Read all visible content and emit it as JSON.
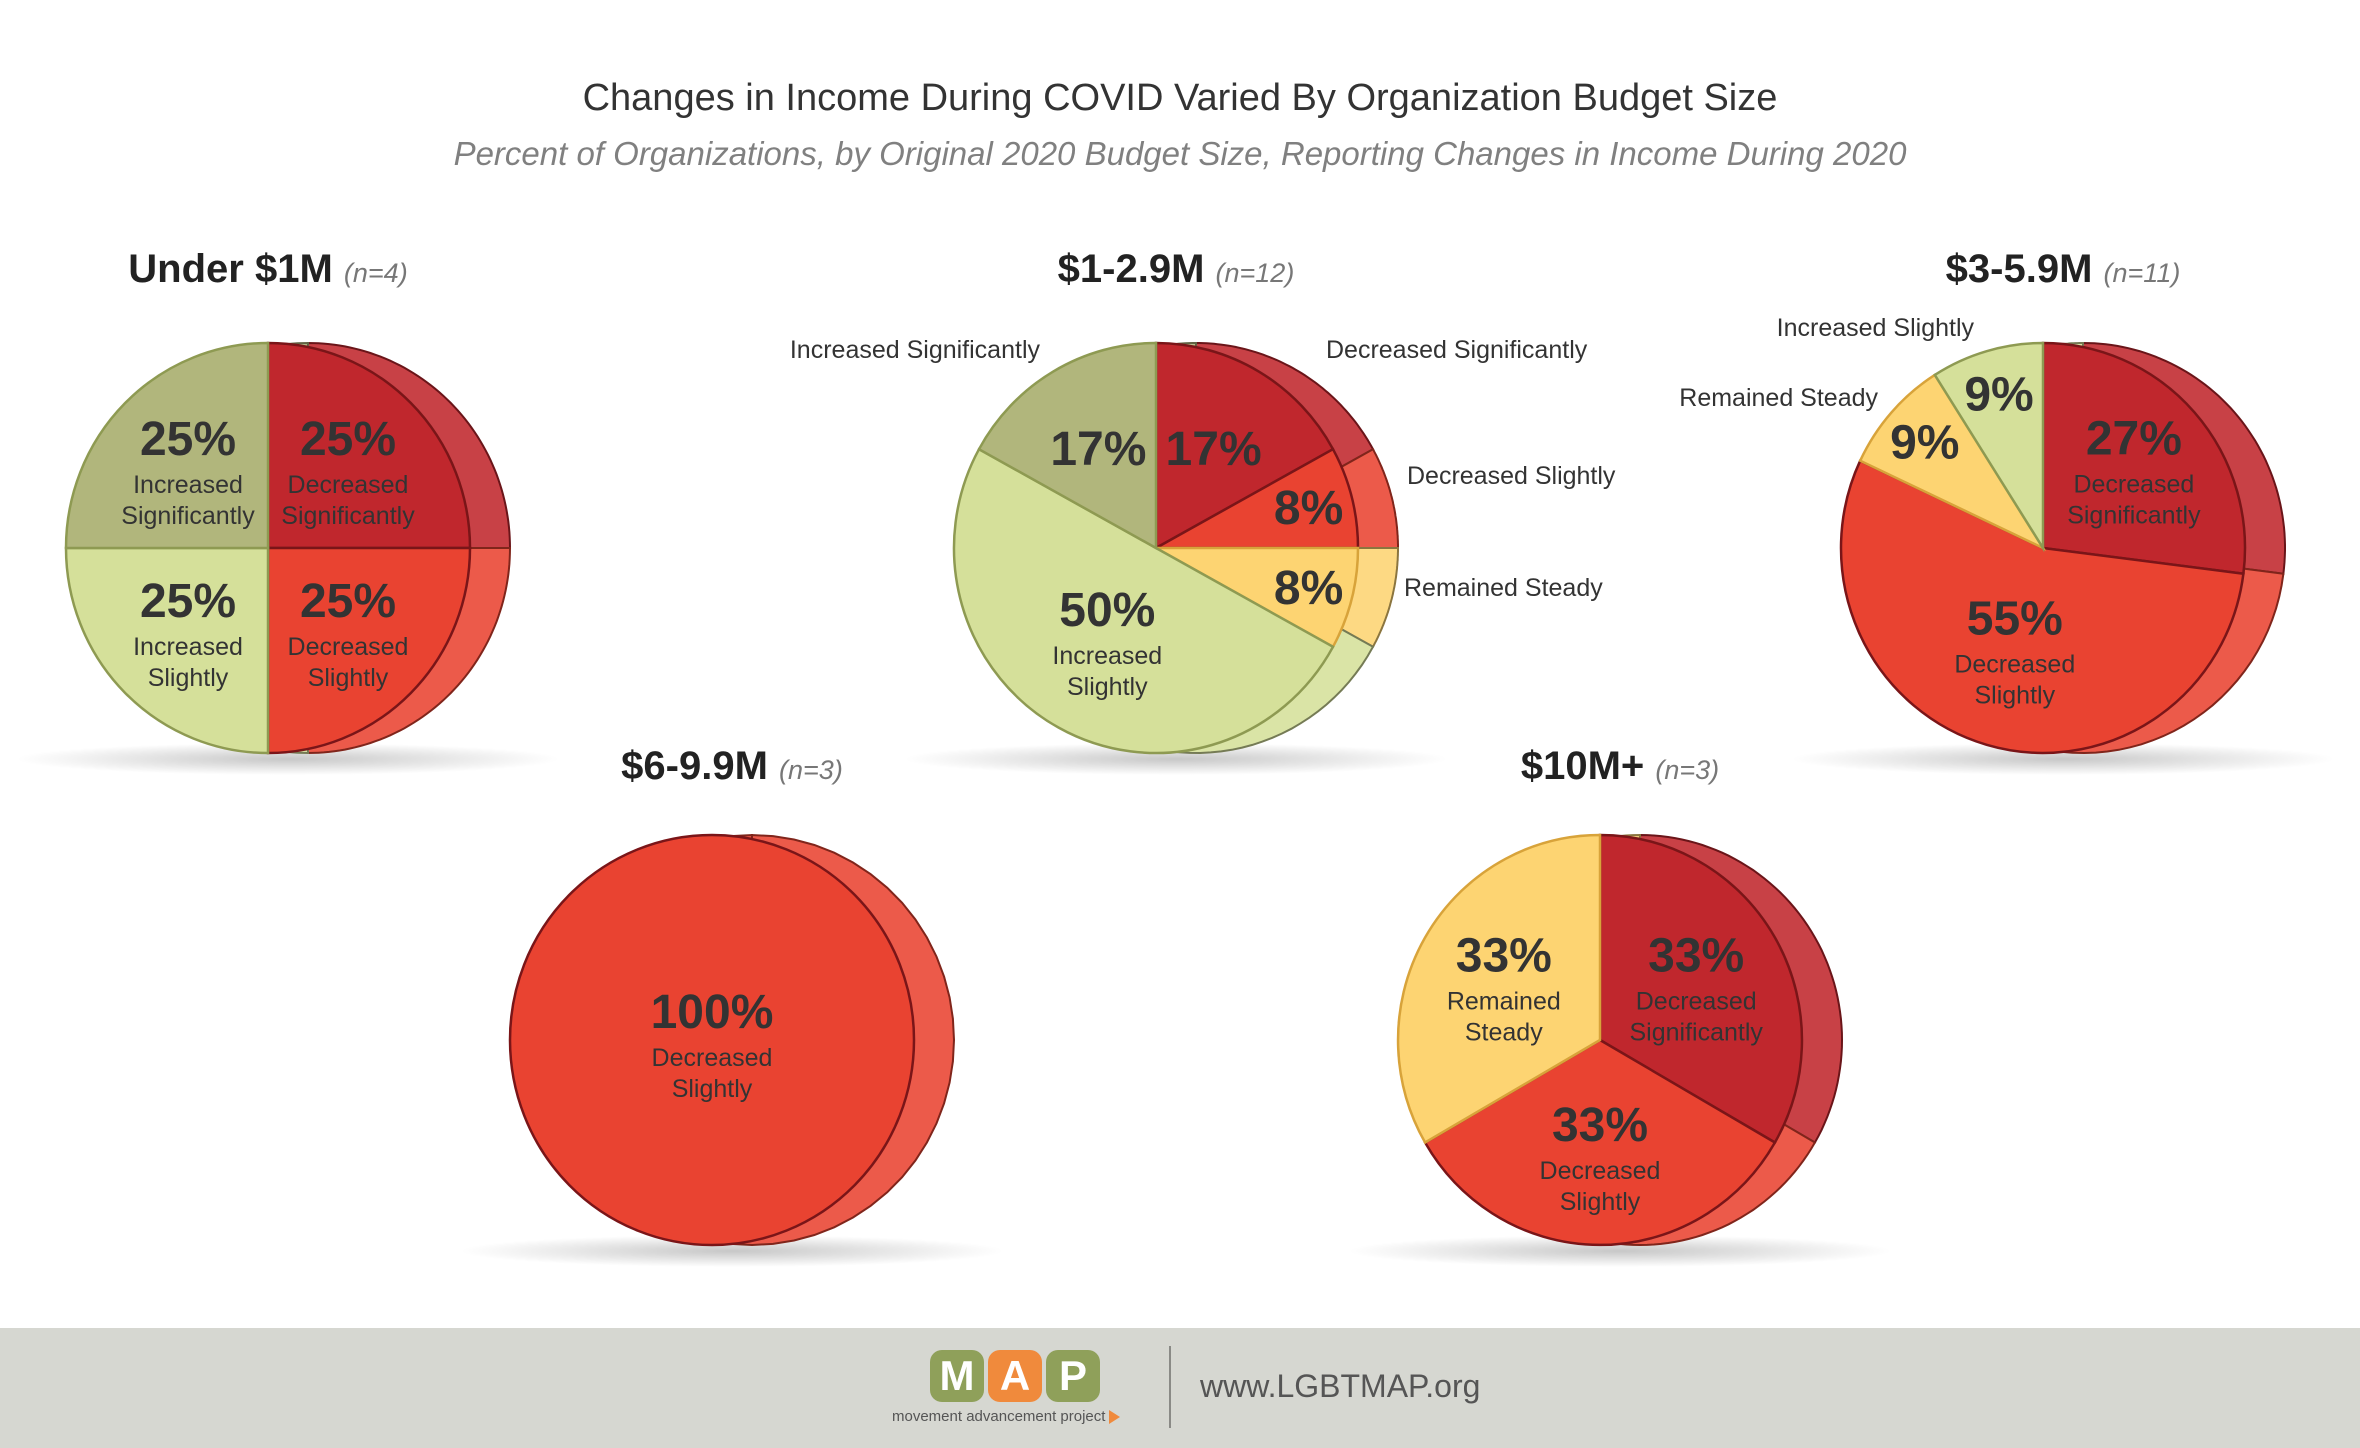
{
  "header": {
    "title": "Changes in Income During COVID Varied By Organization Budget Size",
    "subtitle": "Percent of Organizations, by Original 2020 Budget Size, Reporting Changes in Income During 2020"
  },
  "colors": {
    "increased_significantly": "#b1b67c",
    "increased_slightly": "#d5e09a",
    "remained_steady": "#fdd472",
    "decreased_slightly": "#e94331",
    "decreased_significantly": "#c0272d",
    "outline_dark": "#7a1518",
    "outline_green": "#8e9a52"
  },
  "chart_data": [
    {
      "type": "pie",
      "title": "Under $1M",
      "n_label": "(n=4)",
      "slices": [
        {
          "category": "Decreased Significantly",
          "label_lines": [
            "Decreased",
            "Significantly"
          ],
          "value": 25,
          "pct_label": "25%"
        },
        {
          "category": "Decreased Slightly",
          "label_lines": [
            "Decreased",
            "Slightly"
          ],
          "value": 25,
          "pct_label": "25%"
        },
        {
          "category": "Increased Slightly",
          "label_lines": [
            "Increased",
            "Slightly"
          ],
          "value": 25,
          "pct_label": "25%"
        },
        {
          "category": "Increased Significantly",
          "label_lines": [
            "Increased",
            "Significantly"
          ],
          "value": 25,
          "pct_label": "25%"
        }
      ]
    },
    {
      "type": "pie",
      "title": "$1-2.9M",
      "n_label": "(n=12)",
      "slices": [
        {
          "category": "Decreased Significantly",
          "label_lines": [],
          "value": 17,
          "pct_label": "17%",
          "callout": "Decreased Significantly"
        },
        {
          "category": "Decreased Slightly",
          "label_lines": [],
          "value": 8,
          "pct_label": "8%",
          "callout": "Decreased Slightly"
        },
        {
          "category": "Remained Steady",
          "label_lines": [],
          "value": 8,
          "pct_label": "8%",
          "callout": "Remained Steady"
        },
        {
          "category": "Increased Slightly",
          "label_lines": [
            "Increased",
            "Slightly"
          ],
          "value": 50,
          "pct_label": "50%"
        },
        {
          "category": "Increased Significantly",
          "label_lines": [],
          "value": 17,
          "pct_label": "17%",
          "callout": "Increased Significantly"
        }
      ]
    },
    {
      "type": "pie",
      "title": "$3-5.9M",
      "n_label": "(n=11)",
      "slices": [
        {
          "category": "Decreased Significantly",
          "label_lines": [
            "Decreased",
            "Significantly"
          ],
          "value": 27,
          "pct_label": "27%"
        },
        {
          "category": "Decreased Slightly",
          "label_lines": [
            "Decreased",
            "Slightly"
          ],
          "value": 55,
          "pct_label": "55%"
        },
        {
          "category": "Remained Steady",
          "label_lines": [],
          "value": 9,
          "pct_label": "9%",
          "callout": "Remained Steady"
        },
        {
          "category": "Increased Slightly",
          "label_lines": [],
          "value": 9,
          "pct_label": "9%",
          "callout": "Increased Slightly"
        }
      ]
    },
    {
      "type": "pie",
      "title": "$6-9.9M",
      "n_label": "(n=3)",
      "slices": [
        {
          "category": "Decreased Slightly",
          "label_lines": [
            "Decreased",
            "Slightly"
          ],
          "value": 100,
          "pct_label": "100%"
        }
      ]
    },
    {
      "type": "pie",
      "title": "$10M+",
      "n_label": "(n=3)",
      "slices": [
        {
          "category": "Decreased Significantly",
          "label_lines": [
            "Decreased",
            "Significantly"
          ],
          "value": 33,
          "pct_label": "33%"
        },
        {
          "category": "Decreased Slightly",
          "label_lines": [
            "Decreased",
            "Slightly"
          ],
          "value": 33,
          "pct_label": "33%"
        },
        {
          "category": "Remained Steady",
          "label_lines": [
            "Remained",
            "Steady"
          ],
          "value": 33,
          "pct_label": "33%"
        }
      ]
    }
  ],
  "footer": {
    "logo_letters": [
      "M",
      "A",
      "P"
    ],
    "logo_colors": [
      "#8fa05a",
      "#f08a3c",
      "#8fa05a"
    ],
    "logo_subtext": "movement advancement project",
    "url": "www.LGBTMAP.org"
  }
}
